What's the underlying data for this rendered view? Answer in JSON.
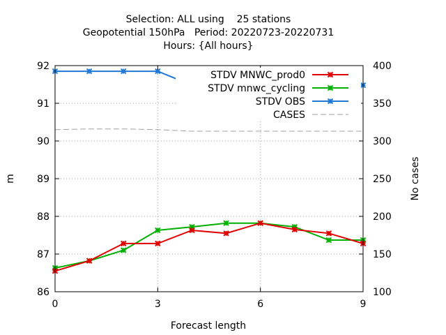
{
  "chart_data": {
    "type": "line",
    "title_lines": [
      "Selection: ALL using    25 stations",
      "Geopotential 150hPa   Period: 20220723-20220731",
      "Hours: {All hours}"
    ],
    "xlabel": "Forecast length",
    "ylabel": "m",
    "y2label": "No cases",
    "xlim": [
      0,
      9
    ],
    "ylim": [
      86,
      92
    ],
    "y2lim": [
      100,
      400
    ],
    "xticks": [
      0,
      3,
      6,
      9
    ],
    "yticks": [
      86,
      87,
      88,
      89,
      90,
      91,
      92
    ],
    "y2ticks": [
      100,
      150,
      200,
      250,
      300,
      350,
      400
    ],
    "grid": true,
    "legend_position": "top-right",
    "x": [
      0,
      1,
      2,
      3,
      4,
      5,
      6,
      7,
      8,
      9
    ],
    "series": [
      {
        "name": "STDV MNWC_prod0",
        "color": "#e00000",
        "axis": "y",
        "marker": "x",
        "values": [
          86.55,
          86.82,
          87.28,
          87.28,
          87.63,
          87.55,
          87.82,
          87.65,
          87.55,
          87.28
        ]
      },
      {
        "name": "STDV mnwc_cycling",
        "color": "#00b000",
        "axis": "y",
        "marker": "x",
        "values": [
          86.63,
          86.82,
          87.1,
          87.63,
          87.72,
          87.82,
          87.82,
          87.72,
          87.37,
          87.37
        ]
      },
      {
        "name": "STDV OBS",
        "color": "#1f78d4",
        "axis": "y",
        "marker": "x",
        "values": [
          91.85,
          91.85,
          91.85,
          91.85,
          91.48,
          91.48,
          91.48,
          91.48,
          91.48,
          91.48
        ]
      },
      {
        "name": "CASES",
        "color": "#a0a0a0",
        "axis": "y2",
        "marker": "none",
        "dashed": true,
        "values": [
          315,
          316,
          316,
          315,
          313,
          313,
          313,
          313,
          313,
          313
        ]
      }
    ]
  }
}
